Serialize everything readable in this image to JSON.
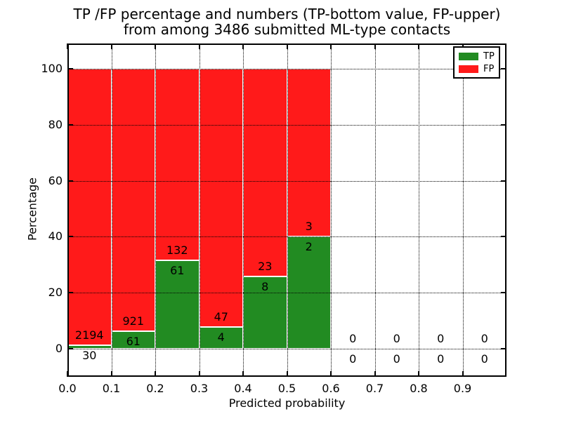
{
  "chart_data": {
    "type": "bar",
    "stacked": true,
    "title_line1": "TP /FP percentage and numbers (TP-bottom value, FP-upper)",
    "title_line2": "from among 3486 submitted ML-type contacts",
    "submitted_total": 3486,
    "xlabel": "Predicted probability",
    "ylabel": "Percentage",
    "xlim": [
      0.0,
      1.0
    ],
    "ylim": [
      -10,
      109
    ],
    "grid": "dotted",
    "legend_position": "upper right",
    "bar_edge_color": "#ffffff",
    "xticks": [
      0.0,
      0.1,
      0.2,
      0.3,
      0.4,
      0.5,
      0.6,
      0.7,
      0.8,
      0.9
    ],
    "xtick_labels": [
      "0.0",
      "0.1",
      "0.2",
      "0.3",
      "0.4",
      "0.5",
      "0.6",
      "0.7",
      "0.8",
      "0.9"
    ],
    "yticks": [
      0,
      20,
      40,
      60,
      80,
      100
    ],
    "ytick_labels": [
      "0",
      "20",
      "40",
      "60",
      "80",
      "100"
    ],
    "legend": [
      {
        "label": "TP",
        "color": "#228b22"
      },
      {
        "label": "FP",
        "color": "#ff1a1a"
      }
    ],
    "bins": [
      {
        "x0": 0.0,
        "x1": 0.1,
        "tp": 30,
        "fp": 2194
      },
      {
        "x0": 0.1,
        "x1": 0.2,
        "tp": 61,
        "fp": 921
      },
      {
        "x0": 0.2,
        "x1": 0.3,
        "tp": 61,
        "fp": 132
      },
      {
        "x0": 0.3,
        "x1": 0.4,
        "tp": 4,
        "fp": 47
      },
      {
        "x0": 0.4,
        "x1": 0.5,
        "tp": 8,
        "fp": 23
      },
      {
        "x0": 0.5,
        "x1": 0.6,
        "tp": 2,
        "fp": 3
      },
      {
        "x0": 0.6,
        "x1": 0.7,
        "tp": 0,
        "fp": 0
      },
      {
        "x0": 0.7,
        "x1": 0.8,
        "tp": 0,
        "fp": 0
      },
      {
        "x0": 0.8,
        "x1": 0.9,
        "tp": 0,
        "fp": 0
      },
      {
        "x0": 0.9,
        "x1": 1.0,
        "tp": 0,
        "fp": 0
      }
    ]
  }
}
